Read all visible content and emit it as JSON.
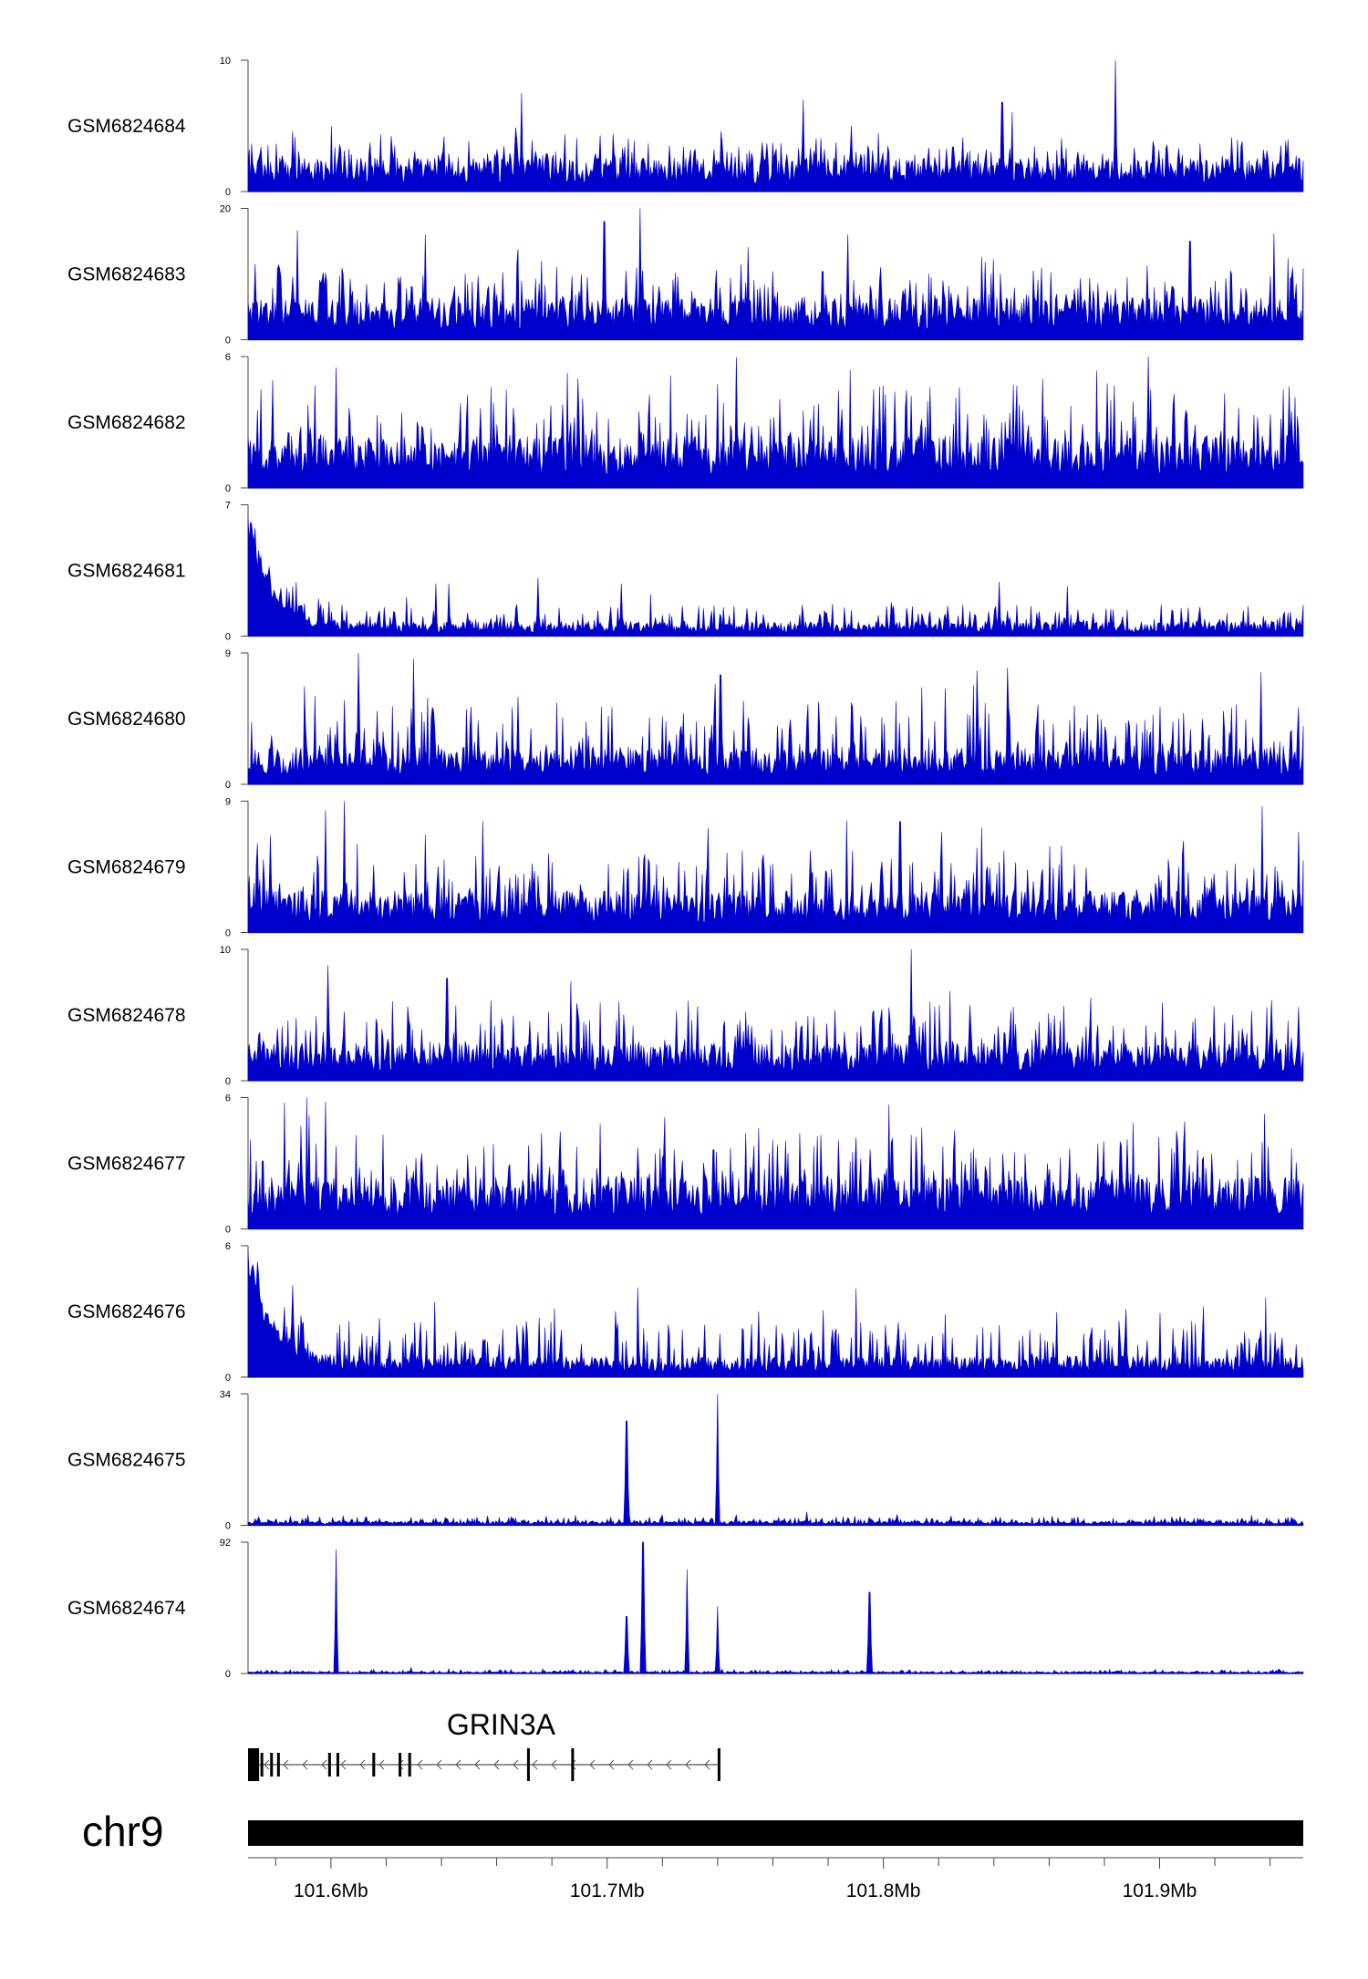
{
  "chart_data": {
    "type": "area",
    "chromosome": "chr9",
    "xlim": [
      101.57,
      101.952
    ],
    "x_ticks": [
      101.6,
      101.7,
      101.8,
      101.9
    ],
    "x_tick_labels": [
      "101.6Mb",
      "101.7Mb",
      "101.8Mb",
      "101.9Mb"
    ],
    "color": "#0000cc",
    "tracks": [
      {
        "name": "GSM6824684",
        "ymax": 10,
        "ylabels": [
          "10",
          "0"
        ],
        "baseline": 1.6,
        "noise": 1.3,
        "peaks": [
          [
            101.884,
            10
          ],
          [
            101.669,
            7.5
          ],
          [
            101.771,
            7
          ],
          [
            101.843,
            6.8
          ]
        ],
        "start_spike": null
      },
      {
        "name": "GSM6824683",
        "ymax": 20,
        "ylabels": [
          "20",
          "0"
        ],
        "baseline": 4,
        "noise": 4,
        "peaks": [
          [
            101.712,
            20
          ],
          [
            101.699,
            18
          ],
          [
            101.634,
            16
          ],
          [
            101.787,
            16
          ],
          [
            101.588,
            16
          ],
          [
            101.911,
            15
          ]
        ],
        "start_spike": null
      },
      {
        "name": "GSM6824682",
        "ymax": 6,
        "ylabels": [
          "6",
          "0"
        ],
        "baseline": 1.5,
        "noise": 1.6,
        "peaks": [
          [
            101.896,
            6
          ],
          [
            101.602,
            5.5
          ],
          [
            101.74,
            3.8
          ],
          [
            101.817,
            4.6
          ]
        ],
        "start_spike": null
      },
      {
        "name": "GSM6824681",
        "ymax": 7,
        "ylabels": [
          "7",
          "0"
        ],
        "baseline": 0.5,
        "noise": 0.7,
        "peaks": [
          [
            101.675,
            3.1
          ],
          [
            101.705,
            2.8
          ],
          [
            101.842,
            2.9
          ]
        ],
        "start_spike": [
          7,
          3.2
        ]
      },
      {
        "name": "GSM6824680",
        "ymax": 9,
        "ylabels": [
          "9",
          "0"
        ],
        "baseline": 1.6,
        "noise": 2,
        "peaks": [
          [
            101.61,
            9
          ],
          [
            101.63,
            8.6
          ],
          [
            101.741,
            7.5
          ],
          [
            101.834,
            7.8
          ]
        ],
        "start_spike": null
      },
      {
        "name": "GSM6824679",
        "ymax": 9,
        "ylabels": [
          "9",
          "0"
        ],
        "baseline": 1.8,
        "noise": 2.2,
        "peaks": [
          [
            101.605,
            9
          ],
          [
            101.598,
            8.4
          ],
          [
            101.655,
            7.6
          ],
          [
            101.806,
            7.6
          ]
        ],
        "start_spike": null
      },
      {
        "name": "GSM6824678",
        "ymax": 10,
        "ylabels": [
          "10",
          "0"
        ],
        "baseline": 1.8,
        "noise": 2.2,
        "peaks": [
          [
            101.81,
            10
          ],
          [
            101.599,
            8.8
          ],
          [
            101.642,
            7.8
          ]
        ],
        "start_spike": null
      },
      {
        "name": "GSM6824677",
        "ymax": 6,
        "ylabels": [
          "6",
          "0"
        ],
        "baseline": 1.5,
        "noise": 1.6,
        "peaks": [
          [
            101.598,
            5.8
          ],
          [
            101.592,
            5.2
          ],
          [
            101.721,
            5.1
          ],
          [
            101.909,
            4.9
          ]
        ],
        "start_spike": null
      },
      {
        "name": "GSM6824676",
        "ymax": 6,
        "ylabels": [
          "6",
          "0"
        ],
        "baseline": 0.6,
        "noise": 1.1,
        "peaks": [
          [
            101.586,
            4.2
          ],
          [
            101.755,
            3
          ],
          [
            101.888,
            3.1
          ]
        ],
        "start_spike": [
          6,
          2.6
        ]
      },
      {
        "name": "GSM6824675",
        "ymax": 34,
        "ylabels": [
          "34",
          "0"
        ],
        "baseline": 0.7,
        "noise": 0.9,
        "peaks": [
          [
            101.74,
            34
          ],
          [
            101.707,
            27
          ]
        ],
        "start_spike": null
      },
      {
        "name": "GSM6824674",
        "ymax": 92,
        "ylabels": [
          "92",
          "0"
        ],
        "baseline": 0.8,
        "noise": 1.0,
        "peaks": [
          [
            101.602,
            87
          ],
          [
            101.713,
            92
          ],
          [
            101.729,
            73
          ],
          [
            101.795,
            57
          ],
          [
            101.74,
            47
          ],
          [
            101.707,
            40
          ]
        ],
        "start_spike": null
      }
    ],
    "gene": {
      "name": "GRIN3A",
      "start": 101.57,
      "end": 101.74,
      "strand": "-",
      "exons": [
        [
          101.57,
          101.574
        ],
        [
          101.5745,
          101.5755
        ],
        [
          101.578,
          101.579
        ],
        [
          101.5805,
          101.5815
        ],
        [
          101.599,
          101.6
        ],
        [
          101.602,
          101.603
        ],
        [
          101.615,
          101.616
        ],
        [
          101.6245,
          101.6255
        ],
        [
          101.628,
          101.629
        ],
        [
          101.671,
          101.672
        ],
        [
          101.687,
          101.688
        ],
        [
          101.74,
          101.741
        ]
      ]
    }
  }
}
